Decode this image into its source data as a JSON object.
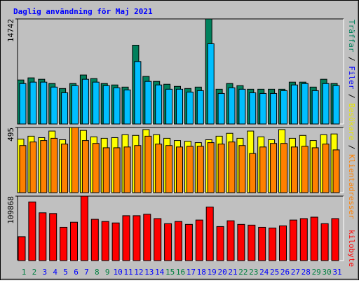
{
  "title": "Daglig användning för Maj 2021",
  "legend_separator": "/",
  "chart_data": [
    {
      "type": "bar",
      "ylim": [
        0,
        14742
      ],
      "yticks": [
        14742
      ],
      "series": [
        {
          "name": "Träffar",
          "color": "#00805c",
          "text_color": "#00805c",
          "values": [
            6175,
            6474,
            6275,
            5677,
            4980,
            5677,
            6872,
            6374,
            5677,
            5478,
            5179,
            11056,
            6673,
            5976,
            5578,
            5279,
            4980,
            5179,
            14742,
            4880,
            5677,
            5378,
            4880,
            4880,
            4880,
            4880,
            5876,
            5876,
            5179,
            6275,
            5677
          ]
        },
        {
          "name": "Filer",
          "color": "#00bfff",
          "text_color": "#0000ff",
          "values": [
            5677,
            5876,
            5876,
            5179,
            4382,
            5378,
            6275,
            5876,
            5378,
            5080,
            4781,
            8765,
            5976,
            5478,
            4880,
            4880,
            4482,
            4681,
            11255,
            4283,
            5080,
            4880,
            4382,
            4283,
            4283,
            4681,
            5478,
            5677,
            4681,
            5677,
            5378
          ]
        }
      ]
    },
    {
      "type": "bar",
      "ylim": [
        0,
        495
      ],
      "yticks": [
        495
      ],
      "series": [
        {
          "name": "Besökare",
          "color": "#ffff00",
          "text_color": "#e6e600",
          "values": [
            407,
            429,
            418,
            468,
            402,
            495,
            473,
            424,
            413,
            418,
            440,
            435,
            479,
            440,
            413,
            396,
            391,
            380,
            402,
            429,
            451,
            413,
            468,
            424,
            402,
            479,
            413,
            435,
            396,
            440,
            446
          ]
        },
        {
          "name": "Klientadresser",
          "color": "#ff8000",
          "text_color": "#ff8000",
          "values": [
            358,
            385,
            396,
            413,
            369,
            495,
            396,
            374,
            341,
            341,
            347,
            358,
            429,
            369,
            358,
            347,
            352,
            352,
            380,
            369,
            385,
            358,
            297,
            347,
            374,
            374,
            347,
            352,
            341,
            369,
            325
          ]
        }
      ]
    },
    {
      "type": "bar",
      "ylim": [
        0,
        109868
      ],
      "yticks": [
        109868
      ],
      "categories": [
        "1",
        "2",
        "3",
        "4",
        "5",
        "6",
        "7",
        "8",
        "9",
        "10",
        "11",
        "12",
        "13",
        "14",
        "15",
        "16",
        "17",
        "18",
        "19",
        "20",
        "21",
        "22",
        "23",
        "24",
        "25",
        "26",
        "27",
        "28",
        "29",
        "30",
        "31"
      ],
      "category_colors": [
        "#008040",
        "#008040",
        "#0000ff",
        "#0000ff",
        "#0000ff",
        "#0000ff",
        "#0000ff",
        "#008040",
        "#008040",
        "#0000ff",
        "#0000ff",
        "#0000ff",
        "#0000ff",
        "#0000ff",
        "#008040",
        "#008040",
        "#0000ff",
        "#0000ff",
        "#0000ff",
        "#0000ff",
        "#0000ff",
        "#008040",
        "#008040",
        "#0000ff",
        "#0000ff",
        "#0000ff",
        "#0000ff",
        "#0000ff",
        "#008040",
        "#008040",
        "#0000ff"
      ],
      "series": [
        {
          "name": "kilobyte",
          "color": "#ff0000",
          "text_color": "#ff0000",
          "values": [
            40739,
            99994,
            81477,
            80244,
            56787,
            65429,
            109868,
            70367,
            66663,
            64194,
            76539,
            76539,
            79008,
            71601,
            62960,
            66663,
            61725,
            69132,
            91353,
            58022,
            67898,
            61725,
            60491,
            56787,
            55553,
            59256,
            69132,
            71601,
            74070,
            62960,
            71601
          ]
        }
      ]
    }
  ]
}
